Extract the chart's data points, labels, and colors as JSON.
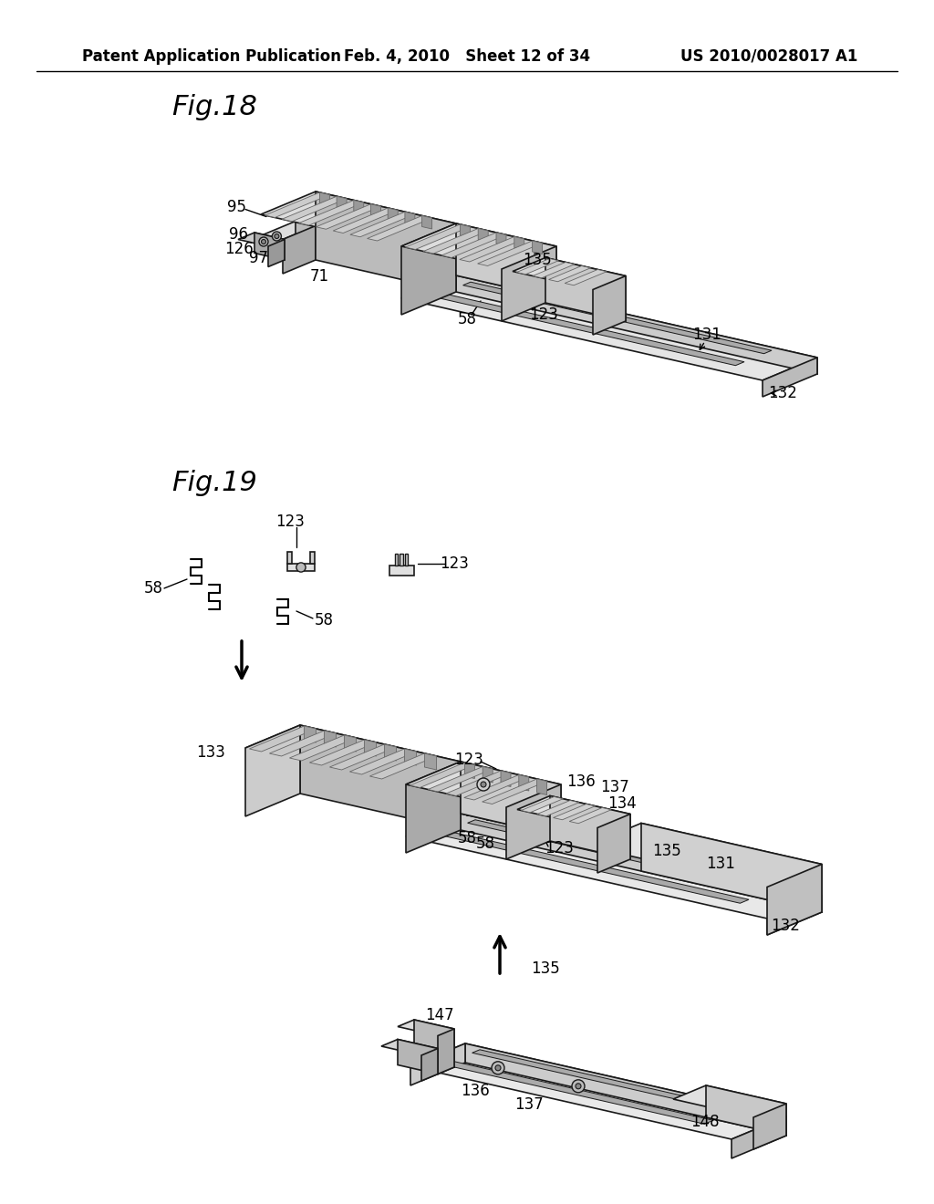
{
  "background_color": "#ffffff",
  "header_left": "Patent Application Publication",
  "header_center": "Feb. 4, 2010  Sheet 12 of 34",
  "header_right": "US 2010/0028017 A1",
  "fig18_label": "Fig.18",
  "fig19_label": "Fig.19",
  "line_color": "#000000",
  "text_color": "#000000"
}
